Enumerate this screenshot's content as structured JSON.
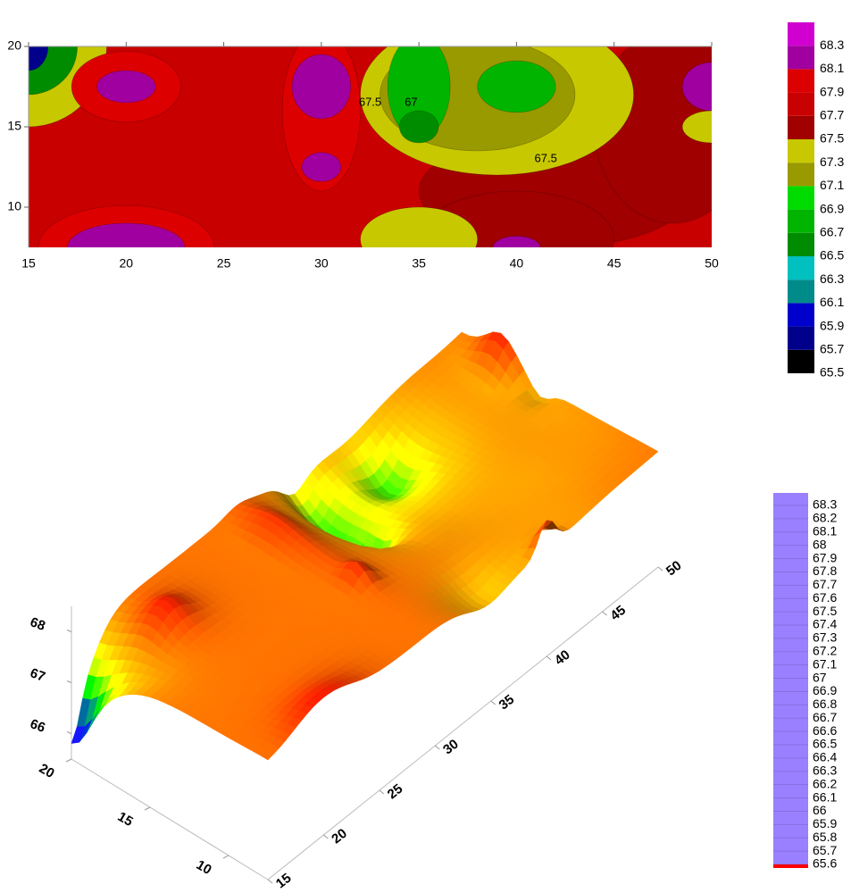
{
  "chart_data": [
    {
      "type": "contour",
      "xlim": [
        15,
        50
      ],
      "xticks": [
        15,
        20,
        25,
        30,
        35,
        40,
        45,
        50
      ],
      "ylim": [
        7.5,
        20
      ],
      "yticks": [
        10,
        15,
        20
      ],
      "background": 67.8,
      "features": [
        {
          "x": 42,
          "y": 11,
          "value": 67.6,
          "rx": 7,
          "ry": 3.5
        },
        {
          "x": 48,
          "y": 15,
          "value": 67.6,
          "rx": 4,
          "ry": 6
        },
        {
          "x": 15,
          "y": 20,
          "value": 67.4,
          "rx": 4,
          "ry": 5
        },
        {
          "x": 15,
          "y": 20,
          "value": 66.6,
          "rx": 2.5,
          "ry": 3
        },
        {
          "x": 15,
          "y": 20,
          "value": 65.8,
          "rx": 1,
          "ry": 1.5
        },
        {
          "x": 20,
          "y": 17.5,
          "value": 68.0,
          "rx": 2.8,
          "ry": 2.2
        },
        {
          "x": 20,
          "y": 17.5,
          "value": 68.2,
          "rx": 1.5,
          "ry": 1
        },
        {
          "x": 30,
          "y": 16,
          "value": 68.0,
          "rx": 2,
          "ry": 5
        },
        {
          "x": 30,
          "y": 17.5,
          "value": 68.2,
          "rx": 1.5,
          "ry": 2
        },
        {
          "x": 30,
          "y": 12.5,
          "value": 68.2,
          "rx": 1,
          "ry": 0.9
        },
        {
          "x": 20,
          "y": 7.5,
          "value": 68.0,
          "rx": 4.5,
          "ry": 2.6
        },
        {
          "x": 20,
          "y": 7.5,
          "value": 68.2,
          "rx": 3,
          "ry": 1.5
        },
        {
          "x": 40,
          "y": 8,
          "value": 67.6,
          "rx": 5,
          "ry": 3
        },
        {
          "x": 40,
          "y": 7.5,
          "value": 68.2,
          "rx": 1.2,
          "ry": 0.7
        },
        {
          "x": 39,
          "y": 17,
          "value": 67.4,
          "rx": 7,
          "ry": 5
        },
        {
          "x": 38,
          "y": 17,
          "value": 67.2,
          "rx": 5,
          "ry": 3.5
        },
        {
          "x": 35,
          "y": 17.5,
          "value": 66.8,
          "rx": 1.6,
          "ry": 3.2
        },
        {
          "x": 40,
          "y": 17.5,
          "value": 66.8,
          "rx": 2,
          "ry": 1.6
        },
        {
          "x": 35,
          "y": 15,
          "value": 66.6,
          "rx": 1,
          "ry": 1
        },
        {
          "x": 35,
          "y": 8,
          "value": 67.4,
          "rx": 3,
          "ry": 2
        },
        {
          "x": 50,
          "y": 15,
          "value": 67.4,
          "rx": 1.5,
          "ry": 1
        },
        {
          "x": 50,
          "y": 17.5,
          "value": 68.2,
          "rx": 1.5,
          "ry": 1.5
        }
      ],
      "contour_labels": [
        {
          "value": 67.5,
          "x": 32.5,
          "y": 16.5
        },
        {
          "value": 67,
          "x": 34.6,
          "y": 16.5
        },
        {
          "value": 67.5,
          "x": 41.5,
          "y": 13
        }
      ],
      "colorbar": {
        "lim": [
          65.5,
          68.5
        ],
        "ticks": [
          65.5,
          65.7,
          65.9,
          66.1,
          66.3,
          66.5,
          66.7,
          66.9,
          67.1,
          67.3,
          67.5,
          67.7,
          67.9,
          68.1,
          68.3
        ],
        "colors": [
          "#000000",
          "#00008b",
          "#0000cc",
          "#008b8b",
          "#00c0c0",
          "#008c00",
          "#00b400",
          "#00dc00",
          "#999900",
          "#c8c800",
          "#a00000",
          "#c80000",
          "#dd0000",
          "#a000a0",
          "#d000d0"
        ]
      }
    },
    {
      "type": "surface3d",
      "xlim": [
        15,
        50
      ],
      "xticks": [
        15,
        20,
        25,
        30,
        35,
        40,
        45,
        50
      ],
      "ylim": [
        7.5,
        20
      ],
      "yticks": [
        10,
        15,
        20
      ],
      "zlim": [
        65.5,
        68.5
      ],
      "zticks": [
        66,
        67,
        68
      ],
      "colorbar": {
        "lim": [
          65.6,
          68.3
        ],
        "ticks": [
          65.6,
          65.7,
          65.8,
          65.9,
          66,
          66.1,
          66.2,
          66.3,
          66.4,
          66.5,
          66.6,
          66.7,
          66.8,
          66.9,
          67,
          67.1,
          67.2,
          67.3,
          67.4,
          67.5,
          67.6,
          67.7,
          67.8,
          67.9,
          68,
          68.1,
          68.2,
          68.3
        ],
        "colors": [
          "#9a80ff",
          "#4040ff",
          "#0000ff",
          "#0050a0",
          "#00a060",
          "#00e000",
          "#80ff00",
          "#ffff00",
          "#ffc000",
          "#ff9a00",
          "#ff6a00",
          "#ff3a00",
          "#ff0000"
        ]
      }
    }
  ]
}
